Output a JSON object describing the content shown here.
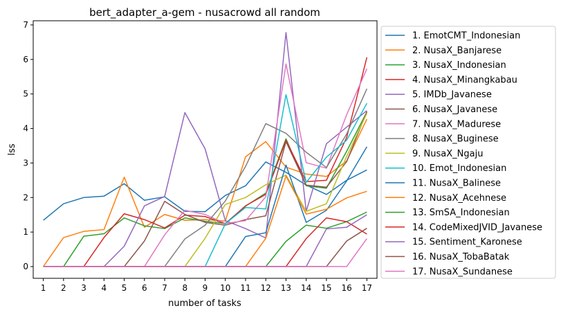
{
  "chart_data": {
    "type": "line",
    "title": "bert_adapter_a-gem - nusacrowd all random",
    "xlabel": "number of tasks",
    "ylabel": "lss",
    "x": [
      1,
      2,
      3,
      4,
      5,
      6,
      7,
      8,
      9,
      10,
      11,
      12,
      13,
      14,
      15,
      16,
      17
    ],
    "xlim": [
      0.5,
      17.5
    ],
    "ylim": [
      -0.34,
      7.12
    ],
    "yticks": [
      0,
      1,
      2,
      3,
      4,
      5,
      6,
      7
    ],
    "grid": false,
    "legend_placement": "outside-right",
    "series": [
      {
        "name": "1. EmotCMT_Indonesian",
        "color": "#1f77b4",
        "values": [
          1.34,
          1.82,
          2.0,
          2.04,
          2.4,
          1.92,
          2.02,
          1.6,
          1.59,
          2.06,
          2.34,
          3.03,
          2.73,
          2.36,
          2.09,
          2.5,
          2.8
        ]
      },
      {
        "name": "2. NusaX_Banjarese",
        "color": "#ff7f0e",
        "values": [
          0,
          0.84,
          1.02,
          1.07,
          2.59,
          1.14,
          1.51,
          1.34,
          1.36,
          1.32,
          3.18,
          3.62,
          2.88,
          2.68,
          2.61,
          3.06,
          4.27
        ]
      },
      {
        "name": "3. NusaX_Indonesian",
        "color": "#2ca02c",
        "values": [
          0,
          0,
          0.88,
          0.95,
          1.41,
          1.18,
          1.1,
          1.41,
          1.31,
          1.25,
          1.75,
          2.13,
          3.7,
          2.34,
          2.27,
          3.34,
          4.48
        ]
      },
      {
        "name": "4. NusaX_Minangkabau",
        "color": "#d62728",
        "values": [
          0,
          0,
          0,
          0.84,
          1.53,
          1.36,
          1.12,
          1.49,
          1.45,
          1.24,
          1.76,
          2.09,
          3.66,
          2.46,
          2.5,
          3.74,
          6.06
        ]
      },
      {
        "name": "5. IMDb_Javanese",
        "color": "#9467bd",
        "values": [
          0,
          0,
          0,
          0,
          0.59,
          1.76,
          2.03,
          4.46,
          3.41,
          1.33,
          1.1,
          0.83,
          6.78,
          1.6,
          3.56,
          4.04,
          4.52
        ]
      },
      {
        "name": "6. NusaX_Javanese",
        "color": "#8c564b",
        "values": [
          0,
          0,
          0,
          0,
          0,
          0.74,
          1.89,
          1.51,
          1.28,
          1.2,
          1.36,
          1.47,
          3.62,
          2.36,
          2.3,
          3.04,
          4.49
        ]
      },
      {
        "name": "7. NusaX_Madurese",
        "color": "#e377c2",
        "values": [
          0,
          0,
          0,
          0,
          0,
          0,
          0.92,
          1.63,
          1.51,
          1.25,
          1.33,
          2.02,
          5.87,
          3.01,
          2.85,
          4.4,
          5.73
        ]
      },
      {
        "name": "8. NusaX_Buginese",
        "color": "#7f7f7f",
        "values": [
          0,
          0,
          0,
          0,
          0,
          0,
          0,
          0.8,
          1.2,
          1.9,
          2.9,
          4.14,
          3.86,
          3.31,
          2.87,
          3.84,
          5.15
        ]
      },
      {
        "name": "9. NusaX_Ngaju",
        "color": "#bcbd22",
        "values": [
          0,
          0,
          0,
          0,
          0,
          0,
          0,
          0,
          0.82,
          1.8,
          2.0,
          2.37,
          2.65,
          1.6,
          1.82,
          3.19,
          4.44
        ]
      },
      {
        "name": "10. Emot_Indonesian",
        "color": "#17becf",
        "values": [
          0,
          0,
          0,
          0,
          0,
          0,
          0,
          0,
          0,
          1.24,
          1.71,
          1.67,
          4.98,
          2.44,
          3.17,
          3.66,
          4.73
        ]
      },
      {
        "name": "11. NusaX_Balinese",
        "color": "#1f77b4",
        "values": [
          0,
          0,
          0,
          0,
          0,
          0,
          0,
          0,
          0,
          0,
          0.87,
          0.98,
          2.94,
          1.28,
          1.63,
          2.48,
          3.47
        ]
      },
      {
        "name": "12. NusaX_Acehnese",
        "color": "#ff7f0e",
        "values": [
          0,
          0,
          0,
          0,
          0,
          0,
          0,
          0,
          0,
          0,
          0,
          0.82,
          2.62,
          1.52,
          1.66,
          1.99,
          2.18
        ]
      },
      {
        "name": "13. SmSA_Indonesian",
        "color": "#2ca02c",
        "values": [
          0,
          0,
          0,
          0,
          0,
          0,
          0,
          0,
          0,
          0,
          0,
          0,
          0.73,
          1.2,
          1.11,
          1.3,
          1.58
        ]
      },
      {
        "name": "14. CodeMixedJVID_Javanese",
        "color": "#d62728",
        "values": [
          0,
          0,
          0,
          0,
          0,
          0,
          0,
          0,
          0,
          0,
          0,
          0,
          0,
          0.81,
          1.41,
          1.3,
          0.94
        ]
      },
      {
        "name": "15. Sentiment_Karonese",
        "color": "#9467bd",
        "values": [
          0,
          0,
          0,
          0,
          0,
          0,
          0,
          0,
          0,
          0,
          0,
          0,
          0,
          0,
          1.09,
          1.14,
          1.5
        ]
      },
      {
        "name": "16. NusaX_TobaBatak",
        "color": "#8c564b",
        "values": [
          0,
          0,
          0,
          0,
          0,
          0,
          0,
          0,
          0,
          0,
          0,
          0,
          0,
          0,
          0,
          0.74,
          1.11
        ]
      },
      {
        "name": "17. NusaX_Sundanese",
        "color": "#e377c2",
        "values": [
          0,
          0,
          0,
          0,
          0,
          0,
          0,
          0,
          0,
          0,
          0,
          0,
          0,
          0,
          0,
          0,
          0.81
        ]
      }
    ]
  }
}
